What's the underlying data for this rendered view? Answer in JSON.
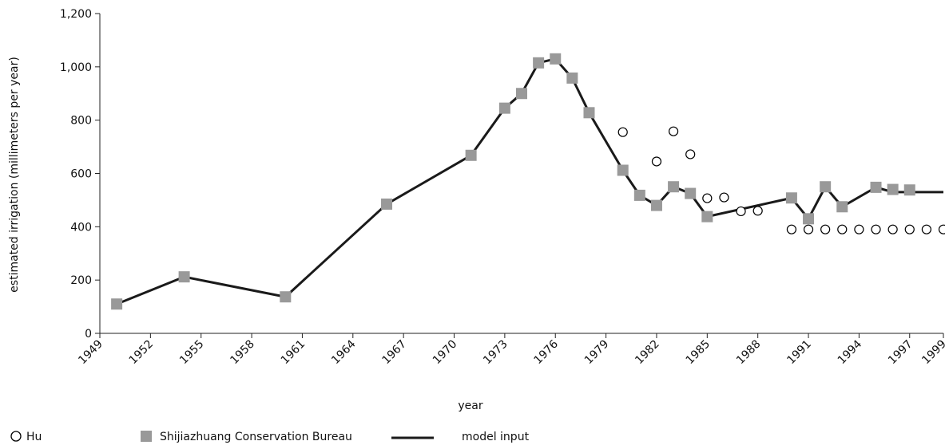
{
  "chart_data": {
    "type": "line",
    "xlabel": "year",
    "ylabel": "estimated irrigation (millimeters per year)",
    "xlim": [
      1949,
      1999
    ],
    "ylim": [
      0,
      1200
    ],
    "x_ticks": [
      1949,
      1952,
      1955,
      1958,
      1961,
      1964,
      1967,
      1970,
      1973,
      1976,
      1979,
      1982,
      1985,
      1988,
      1991,
      1994,
      1997,
      1999
    ],
    "x_tick_labels": [
      "1949",
      "1952",
      "1955",
      "1958",
      "1961",
      "1964",
      "1967",
      "1970",
      "1973",
      "1976",
      "1979",
      "1982",
      "1985",
      "1988",
      "1991",
      "1994",
      "1997",
      "1999"
    ],
    "y_ticks": [
      0,
      200,
      400,
      600,
      800,
      1000,
      1200
    ],
    "y_tick_labels": [
      "0",
      "200",
      "400",
      "600",
      "800",
      "1,000",
      "1,200"
    ],
    "grid": false,
    "legend_position": "bottom-left",
    "series": [
      {
        "name": "Hu",
        "style": "marker",
        "marker": "circle-open",
        "color": "#000000",
        "points": [
          [
            1980,
            755
          ],
          [
            1982,
            645
          ],
          [
            1983,
            758
          ],
          [
            1984,
            672
          ],
          [
            1985,
            507
          ],
          [
            1986,
            510
          ],
          [
            1987,
            458
          ],
          [
            1988,
            460
          ],
          [
            1990,
            390
          ],
          [
            1991,
            390
          ],
          [
            1992,
            390
          ],
          [
            1993,
            390
          ],
          [
            1994,
            390
          ],
          [
            1995,
            390
          ],
          [
            1996,
            390
          ],
          [
            1997,
            390
          ],
          [
            1998,
            390
          ],
          [
            1999,
            390
          ]
        ]
      },
      {
        "name": "Shijiazhuang Conservation Bureau",
        "style": "marker",
        "marker": "square-filled",
        "color": "#999999",
        "points": [
          [
            1950,
            110
          ],
          [
            1954,
            212
          ],
          [
            1960,
            137
          ],
          [
            1966,
            485
          ],
          [
            1971,
            668
          ],
          [
            1973,
            845
          ],
          [
            1974,
            900
          ],
          [
            1975,
            1015
          ],
          [
            1976,
            1030
          ],
          [
            1977,
            958
          ],
          [
            1978,
            828
          ],
          [
            1980,
            612
          ],
          [
            1981,
            518
          ],
          [
            1982,
            480
          ],
          [
            1983,
            550
          ],
          [
            1984,
            525
          ],
          [
            1985,
            438
          ],
          [
            1990,
            508
          ],
          [
            1991,
            430
          ],
          [
            1992,
            550
          ],
          [
            1993,
            475
          ],
          [
            1995,
            548
          ],
          [
            1996,
            540
          ],
          [
            1997,
            538
          ]
        ]
      },
      {
        "name": "model input",
        "style": "line",
        "color": "#1a1a1a",
        "points": [
          [
            1950,
            110
          ],
          [
            1954,
            212
          ],
          [
            1960,
            137
          ],
          [
            1966,
            485
          ],
          [
            1971,
            668
          ],
          [
            1973,
            845
          ],
          [
            1974,
            900
          ],
          [
            1975,
            1015
          ],
          [
            1976,
            1030
          ],
          [
            1977,
            958
          ],
          [
            1978,
            828
          ],
          [
            1980,
            612
          ],
          [
            1981,
            518
          ],
          [
            1982,
            480
          ],
          [
            1983,
            550
          ],
          [
            1984,
            525
          ],
          [
            1985,
            438
          ],
          [
            1990,
            508
          ],
          [
            1991,
            430
          ],
          [
            1992,
            550
          ],
          [
            1993,
            475
          ],
          [
            1995,
            548
          ],
          [
            1996,
            530
          ],
          [
            1999,
            530
          ]
        ]
      }
    ]
  }
}
